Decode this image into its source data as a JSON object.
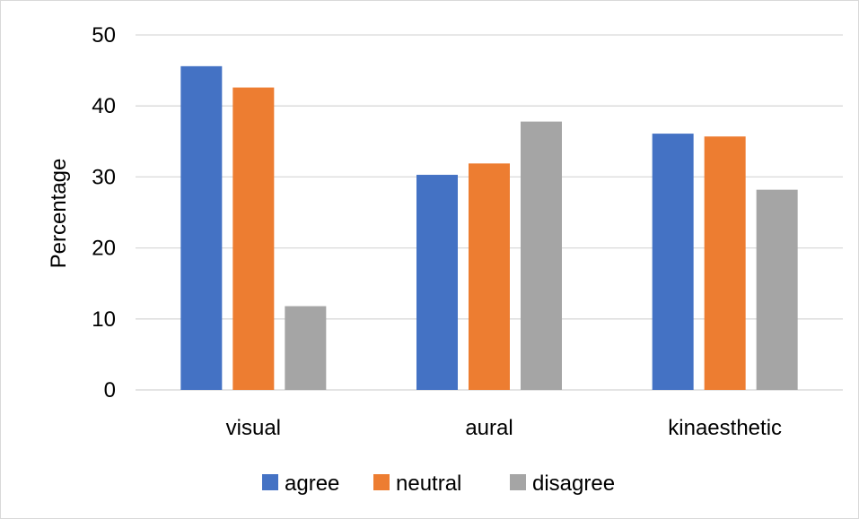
{
  "chart_data": {
    "type": "bar",
    "title": "",
    "xlabel": "",
    "ylabel": "Percentage",
    "categories": [
      "visual",
      "aural",
      "kinaesthetic"
    ],
    "series": [
      {
        "name": "agree",
        "values": [
          45.6,
          30.3,
          36.1
        ],
        "color": "#4472c4"
      },
      {
        "name": "neutral",
        "values": [
          42.6,
          31.9,
          35.7
        ],
        "color": "#ed7d31"
      },
      {
        "name": "disagree",
        "values": [
          11.8,
          37.8,
          28.2
        ],
        "color": "#a5a5a5"
      }
    ],
    "ylim": [
      0,
      50
    ],
    "yticks": [
      0,
      10,
      20,
      30,
      40,
      50
    ],
    "grid": true,
    "legend": "bottom",
    "gridline_color": "#d9d9d9"
  }
}
